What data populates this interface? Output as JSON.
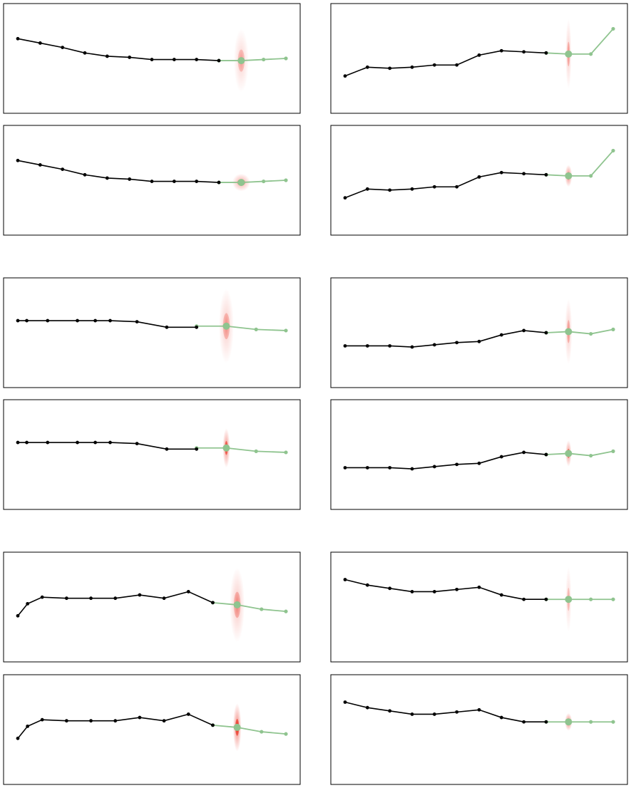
{
  "colors": {
    "observed": "#000000",
    "future": "#8fc48f",
    "density": "#e8200f",
    "frame": "#000000"
  },
  "chart_data": [
    {
      "type": "line",
      "panel": "row1-left",
      "ylim": [
        0,
        1
      ],
      "observed": {
        "x": [
          0,
          1,
          2,
          3,
          4,
          5,
          6,
          7,
          8,
          9
        ],
        "y": [
          0.68,
          0.64,
          0.6,
          0.55,
          0.52,
          0.51,
          0.49,
          0.49,
          0.49,
          0.48
        ]
      },
      "future": {
        "x": [
          9,
          10,
          11,
          12
        ],
        "y": [
          0.48,
          0.48,
          0.49,
          0.5
        ]
      },
      "highlight_index": 10,
      "density_spread": [
        0.025,
        0.29
      ],
      "density_peak": 0.35
    },
    {
      "type": "line",
      "panel": "row1-right",
      "ylim": [
        0,
        1
      ],
      "observed": {
        "x": [
          0,
          1,
          2,
          3,
          4,
          5,
          6,
          7,
          8,
          9
        ],
        "y": [
          0.34,
          0.42,
          0.41,
          0.42,
          0.44,
          0.44,
          0.53,
          0.57,
          0.56,
          0.55
        ]
      },
      "future": {
        "x": [
          9,
          10,
          11,
          12
        ],
        "y": [
          0.55,
          0.54,
          0.54,
          0.77
        ]
      },
      "highlight_index": 10,
      "density_spread": [
        0.01,
        0.32
      ],
      "density_peak": 0.4
    },
    {
      "type": "line",
      "panel": "row2-left",
      "ylim": [
        0,
        1
      ],
      "observed": {
        "x": [
          0,
          1,
          2,
          3,
          4,
          5,
          6,
          7,
          8,
          9
        ],
        "y": [
          0.68,
          0.64,
          0.6,
          0.55,
          0.52,
          0.51,
          0.49,
          0.49,
          0.49,
          0.48
        ]
      },
      "future": {
        "x": [
          9,
          10,
          11,
          12
        ],
        "y": [
          0.48,
          0.48,
          0.49,
          0.5
        ]
      },
      "highlight_index": 10,
      "density_spread": [
        0.03,
        0.08
      ],
      "density_peak": 0.7
    },
    {
      "type": "line",
      "panel": "row2-right",
      "ylim": [
        0,
        1
      ],
      "observed": {
        "x": [
          0,
          1,
          2,
          3,
          4,
          5,
          6,
          7,
          8,
          9
        ],
        "y": [
          0.34,
          0.42,
          0.41,
          0.42,
          0.44,
          0.44,
          0.53,
          0.57,
          0.56,
          0.55
        ]
      },
      "future": {
        "x": [
          9,
          10,
          11,
          12
        ],
        "y": [
          0.55,
          0.54,
          0.54,
          0.77
        ]
      },
      "highlight_index": 10,
      "density_spread": [
        0.012,
        0.1
      ],
      "density_peak": 0.95
    },
    {
      "type": "line",
      "panel": "row3-left",
      "ylim": [
        0,
        1
      ],
      "observed": {
        "x": [
          0,
          0.3,
          1,
          2,
          2.6,
          3.1,
          4,
          5,
          6
        ],
        "y": [
          0.61,
          0.61,
          0.61,
          0.61,
          0.61,
          0.61,
          0.6,
          0.55,
          0.55
        ]
      },
      "future": {
        "x": [
          6,
          7,
          8,
          9
        ],
        "y": [
          0.56,
          0.56,
          0.53,
          0.52
        ]
      },
      "highlight_index": 7,
      "density_spread": [
        0.025,
        0.34
      ],
      "density_peak": 0.4
    },
    {
      "type": "line",
      "panel": "row3-right",
      "ylim": [
        0,
        1
      ],
      "observed": {
        "x": [
          0,
          1,
          2,
          3,
          4,
          5,
          6,
          7,
          8,
          9
        ],
        "y": [
          0.38,
          0.38,
          0.38,
          0.37,
          0.39,
          0.41,
          0.42,
          0.48,
          0.52,
          0.5
        ]
      },
      "future": {
        "x": [
          9,
          10,
          11,
          12
        ],
        "y": [
          0.5,
          0.51,
          0.49,
          0.53
        ]
      },
      "highlight_index": 10,
      "density_spread": [
        0.012,
        0.3
      ],
      "density_peak": 0.4
    },
    {
      "type": "line",
      "panel": "row4-left",
      "ylim": [
        0,
        1
      ],
      "observed": {
        "x": [
          0,
          0.3,
          1,
          2,
          2.6,
          3.1,
          4,
          5,
          6
        ],
        "y": [
          0.61,
          0.61,
          0.61,
          0.61,
          0.61,
          0.61,
          0.6,
          0.55,
          0.55
        ]
      },
      "future": {
        "x": [
          6,
          7,
          8,
          9
        ],
        "y": [
          0.56,
          0.56,
          0.53,
          0.52
        ]
      },
      "highlight_index": 7,
      "density_spread": [
        0.012,
        0.18
      ],
      "density_peak": 0.9
    },
    {
      "type": "line",
      "panel": "row4-right",
      "ylim": [
        0,
        1
      ],
      "observed": {
        "x": [
          0,
          1,
          2,
          3,
          4,
          5,
          6,
          7,
          8,
          9
        ],
        "y": [
          0.38,
          0.38,
          0.38,
          0.37,
          0.39,
          0.41,
          0.42,
          0.48,
          0.52,
          0.5
        ]
      },
      "future": {
        "x": [
          9,
          10,
          11,
          12
        ],
        "y": [
          0.5,
          0.51,
          0.49,
          0.53
        ]
      },
      "highlight_index": 10,
      "density_spread": [
        0.01,
        0.12
      ],
      "density_peak": 0.85
    },
    {
      "type": "line",
      "panel": "row5-left",
      "ylim": [
        0,
        1
      ],
      "observed": {
        "x": [
          0,
          0.4,
          1,
          2,
          3,
          4,
          5,
          6,
          7,
          8
        ],
        "y": [
          0.42,
          0.53,
          0.59,
          0.58,
          0.58,
          0.58,
          0.61,
          0.58,
          0.64,
          0.54
        ]
      },
      "future": {
        "x": [
          8,
          9,
          10,
          11
        ],
        "y": [
          0.54,
          0.52,
          0.48,
          0.46
        ]
      },
      "highlight_index": 9,
      "density_spread": [
        0.025,
        0.34
      ],
      "density_peak": 0.45
    },
    {
      "type": "line",
      "panel": "row5-right",
      "ylim": [
        0,
        1
      ],
      "observed": {
        "x": [
          0,
          1,
          2,
          3,
          4,
          5,
          6,
          7,
          8,
          9
        ],
        "y": [
          0.75,
          0.7,
          0.67,
          0.64,
          0.64,
          0.66,
          0.68,
          0.61,
          0.57,
          0.57
        ]
      },
      "future": {
        "x": [
          9,
          10,
          11,
          12
        ],
        "y": [
          0.57,
          0.57,
          0.57,
          0.57
        ]
      },
      "highlight_index": 10,
      "density_spread": [
        0.01,
        0.3
      ],
      "density_peak": 0.3
    },
    {
      "type": "line",
      "panel": "row6-left",
      "ylim": [
        0,
        1
      ],
      "observed": {
        "x": [
          0,
          0.4,
          1,
          2,
          3,
          4,
          5,
          6,
          7,
          8
        ],
        "y": [
          0.42,
          0.53,
          0.59,
          0.58,
          0.58,
          0.58,
          0.61,
          0.58,
          0.64,
          0.54
        ]
      },
      "future": {
        "x": [
          8,
          9,
          10,
          11
        ],
        "y": [
          0.54,
          0.52,
          0.48,
          0.46
        ]
      },
      "highlight_index": 9,
      "density_spread": [
        0.014,
        0.22
      ],
      "density_peak": 1.0
    },
    {
      "type": "line",
      "panel": "row6-right",
      "ylim": [
        0,
        1
      ],
      "observed": {
        "x": [
          0,
          1,
          2,
          3,
          4,
          5,
          6,
          7,
          8,
          9
        ],
        "y": [
          0.75,
          0.7,
          0.67,
          0.64,
          0.64,
          0.66,
          0.68,
          0.61,
          0.57,
          0.57
        ]
      },
      "future": {
        "x": [
          9,
          10,
          11,
          12
        ],
        "y": [
          0.57,
          0.57,
          0.57,
          0.57
        ]
      },
      "highlight_index": 10,
      "density_spread": [
        0.012,
        0.08
      ],
      "density_peak": 1.0
    }
  ]
}
